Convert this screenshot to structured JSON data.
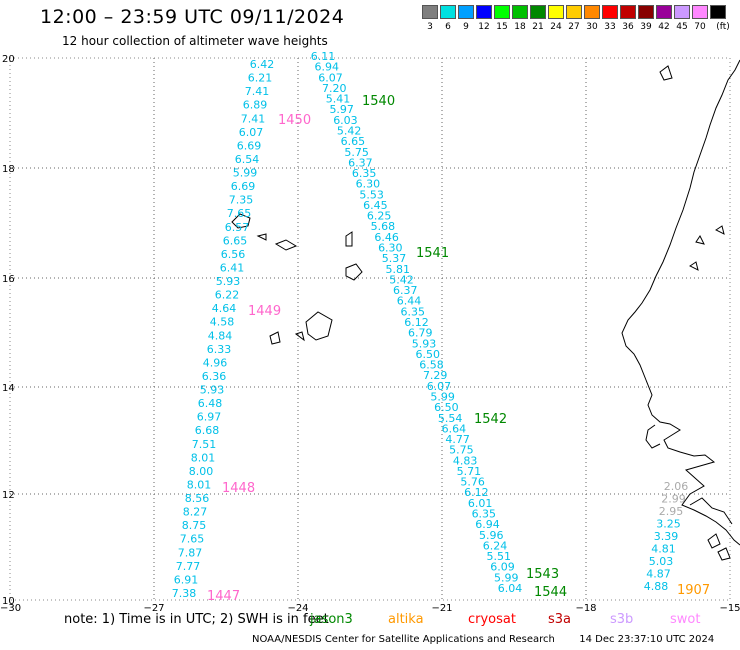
{
  "header": {
    "title": "12:00 – 23:59 UTC 09/11/2024",
    "subtitle": "12 hour collection of altimeter wave heights"
  },
  "legend": {
    "unit": "(ft)",
    "bins": [
      {
        "label": "3",
        "color": "#7f7f7f"
      },
      {
        "label": "6",
        "color": "#00e0e0"
      },
      {
        "label": "9",
        "color": "#00a0ff"
      },
      {
        "label": "12",
        "color": "#0000ff"
      },
      {
        "label": "15",
        "color": "#00ff00"
      },
      {
        "label": "18",
        "color": "#00c000"
      },
      {
        "label": "21",
        "color": "#008800"
      },
      {
        "label": "24",
        "color": "#ffff00"
      },
      {
        "label": "27",
        "color": "#ffcc00"
      },
      {
        "label": "30",
        "color": "#ff8800"
      },
      {
        "label": "33",
        "color": "#ff0000"
      },
      {
        "label": "36",
        "color": "#c00000"
      },
      {
        "label": "39",
        "color": "#880000"
      },
      {
        "label": "42",
        "color": "#990099"
      },
      {
        "label": "45",
        "color": "#cc99ff"
      },
      {
        "label": "70",
        "color": "#ff88ff"
      },
      {
        "label": "",
        "color": "#000000"
      }
    ]
  },
  "axes": {
    "lon_labels": [
      "−30",
      "−27",
      "−24",
      "−21",
      "−18",
      "−15"
    ],
    "lat_labels": [
      "20",
      "18",
      "16",
      "14",
      "12",
      "10"
    ]
  },
  "tracks": {
    "colors": {
      "wave": "#00c0e8",
      "rev_1400s": "#ff66cc",
      "rev_1500s": "#008800",
      "rev_1900s": "#ff9900",
      "gray": "#aaaaaa"
    },
    "track_1447_values": [
      "6.42",
      "6.21",
      "7.41",
      "6.89",
      "7.41",
      "6.07",
      "6.69",
      "6.54",
      "5.99",
      "6.69",
      "7.35",
      "7.65",
      "6.57",
      "6.65",
      "6.56",
      "6.41",
      "5.93",
      "6.22",
      "4.64",
      "4.58",
      "4.84",
      "6.33",
      "4.96",
      "6.36",
      "5.93",
      "6.48",
      "6.97",
      "6.68",
      "7.51",
      "8.01",
      "8.00",
      "8.01",
      "8.56",
      "8.27",
      "8.75",
      "7.65",
      "7.87",
      "7.77",
      "6.91",
      "7.38"
    ],
    "track_1540_values": [
      "6.11",
      "6.94",
      "6.07",
      "7.20",
      "5.41",
      "5.97",
      "6.03",
      "5.42",
      "6.65",
      "5.75",
      "6.37",
      "6.35",
      "6.30",
      "5.53",
      "6.45",
      "6.25",
      "5.68",
      "6.46",
      "6.30",
      "5.37",
      "5.81",
      "5.42",
      "6.37",
      "6.44",
      "6.35",
      "6.12",
      "6.79",
      "5.93",
      "6.50",
      "6.58",
      "7.29",
      "6.07",
      "5.99",
      "6.50",
      "5.54",
      "6.64",
      "4.77",
      "5.75",
      "4.83",
      "5.71",
      "5.76",
      "6.12",
      "6.01",
      "6.35",
      "6.94",
      "5.96",
      "6.24",
      "5.51",
      "6.09",
      "5.99",
      "6.04"
    ],
    "track_1907_values": [
      "2.06",
      "2.99",
      "2.95",
      "3.25",
      "3.39",
      "4.81",
      "5.03",
      "4.87",
      "4.88"
    ],
    "rev_labels_1400s": [
      "1450",
      "1449",
      "1448",
      "1447"
    ],
    "rev_labels_1500s": [
      "1540",
      "1541",
      "1542",
      "1543",
      "1544"
    ],
    "rev_label_1900s": "1907"
  },
  "notes": {
    "note_text": "note: 1) Time is in UTC; 2) SWH is in feet",
    "satellites": [
      {
        "name": "jason3",
        "color": "#008800"
      },
      {
        "name": "altika",
        "color": "#ff9900"
      },
      {
        "name": "cryosat",
        "color": "#ff0000"
      },
      {
        "name": "s3a",
        "color": "#c00000"
      },
      {
        "name": "s3b",
        "color": "#cc99ff"
      },
      {
        "name": "swot",
        "color": "#ff88ff"
      }
    ],
    "credit": "NOAA/NESDIS Center for Satellite Applications and Research",
    "timestamp": "14 Dec 23:37:10 UTC 2024"
  }
}
